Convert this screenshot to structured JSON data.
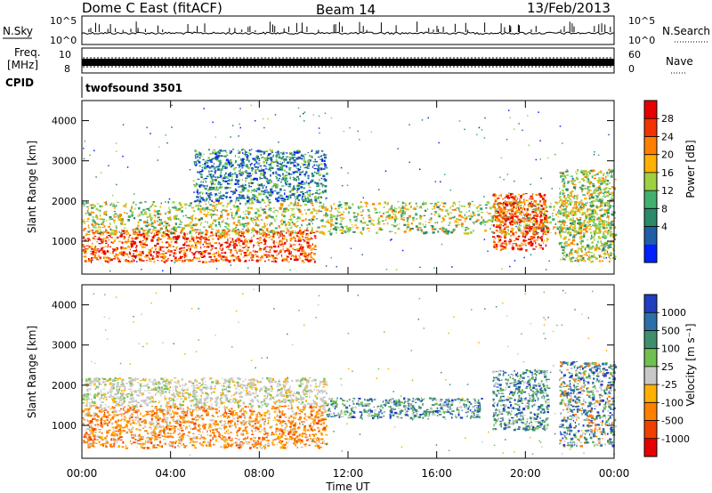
{
  "header": {
    "station": "Dome C East (fitACF)",
    "beam": "Beam 14",
    "date": "13/Feb/2013"
  },
  "upper_panels": {
    "nsky_label": "N.Sky",
    "nsky_ticks": [
      "10^5",
      "10^0"
    ],
    "nsearch_label": "N.Search",
    "nsearch_ticks": [
      "10^5",
      "10^0"
    ],
    "freq_label_line1": "Freq.",
    "freq_label_line2": "[MHz]",
    "freq_ticks": [
      "10",
      "8"
    ],
    "nave_label": "Nave",
    "nave_ticks": [
      "60",
      "0"
    ],
    "cpid_label": "CPID",
    "cpid_value": "twofsound 3501"
  },
  "chart_data": [
    {
      "type": "heatmap",
      "parameter": "Power",
      "ylabel": "Slant Range [km]",
      "ylim": [
        180,
        4500
      ],
      "y_ticks": [
        1000,
        2000,
        3000,
        4000
      ],
      "colorbar": {
        "label": "Power [dB]",
        "ticks": [
          "28",
          "24",
          "20",
          "16",
          "12",
          "8",
          "4"
        ],
        "colors": [
          "#e60000",
          "#f23300",
          "#ff8000",
          "#ffb000",
          "#a0d040",
          "#40b070",
          "#2a8a6a",
          "#1e5fa8",
          "#0020ff"
        ]
      },
      "regions": [
        {
          "t0": 0,
          "t1": 10.5,
          "r0": 500,
          "r1": 1300,
          "level": "high"
        },
        {
          "t0": 0,
          "t1": 24,
          "r0": 1200,
          "r1": 2000,
          "level": "medium"
        },
        {
          "t0": 5,
          "t1": 11,
          "r0": 2000,
          "r1": 3300,
          "level": "low"
        },
        {
          "t0": 18.5,
          "t1": 21,
          "r0": 800,
          "r1": 2200,
          "level": "high"
        },
        {
          "t0": 21.5,
          "t1": 24,
          "r0": 500,
          "r1": 2800,
          "level": "medium"
        }
      ]
    },
    {
      "type": "heatmap",
      "parameter": "Velocity",
      "ylabel": "Slant Range [km]",
      "ylim": [
        180,
        4500
      ],
      "y_ticks": [
        1000,
        2000,
        3000,
        4000
      ],
      "colorbar": {
        "label": "Velocity [m s⁻¹]",
        "ticks": [
          "1000",
          "500",
          "100",
          "25",
          "-25",
          "-100",
          "-500",
          "-1000"
        ],
        "colors": [
          "#1f3fbf",
          "#2d6fa8",
          "#3f8f6f",
          "#70c050",
          "#c8c8c8",
          "#ffb000",
          "#ff8000",
          "#f04000",
          "#e60000"
        ]
      },
      "regions": [
        {
          "t0": 0,
          "t1": 11,
          "r0": 450,
          "r1": 1500,
          "level": "approaching"
        },
        {
          "t0": 0,
          "t1": 11,
          "r0": 1500,
          "r1": 2200,
          "level": "near-zero"
        },
        {
          "t0": 11,
          "t1": 18,
          "r0": 1200,
          "r1": 1700,
          "level": "receding"
        },
        {
          "t0": 18.5,
          "t1": 21,
          "r0": 900,
          "r1": 2400,
          "level": "receding"
        },
        {
          "t0": 21.5,
          "t1": 24,
          "r0": 500,
          "r1": 2600,
          "level": "mixed"
        }
      ]
    }
  ],
  "time_axis": {
    "label": "Time UT",
    "ticks": [
      "00:00",
      "04:00",
      "08:00",
      "12:00",
      "16:00",
      "20:00",
      "00:00"
    ],
    "range_hours": [
      0,
      24
    ]
  }
}
